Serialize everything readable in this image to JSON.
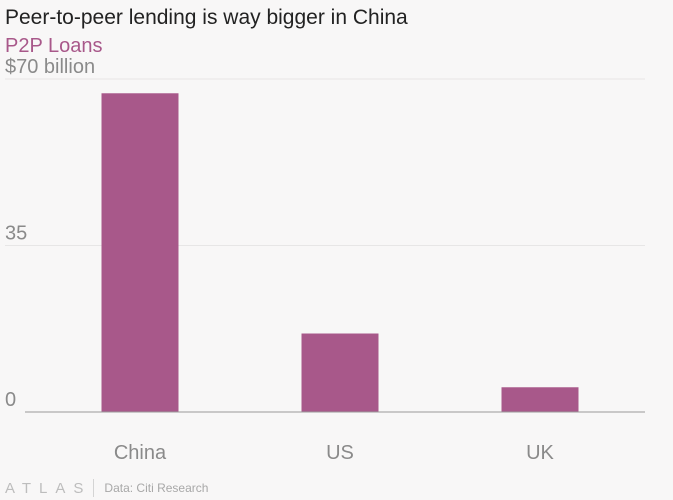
{
  "header": {
    "title": "Peer-to-peer lending is way bigger in China",
    "subtitle": "P2P Loans"
  },
  "colors": {
    "accent": "#a8588a",
    "subtitle": "#a8588a",
    "gridline": "#e7e6e6",
    "axis_text": "#8a8a8a"
  },
  "chart_data": {
    "type": "bar",
    "categories": [
      "China",
      "US",
      "UK"
    ],
    "values": [
      67,
      16.5,
      5.2
    ],
    "ylim": [
      0,
      70
    ],
    "ytick_values": [
      0,
      35,
      70
    ],
    "ytick_labels": [
      "0",
      "35",
      "$70 billion"
    ],
    "grid": true,
    "legend": "none"
  },
  "footer": {
    "logo": "ATLAS",
    "source": "Data: Citi Research"
  }
}
